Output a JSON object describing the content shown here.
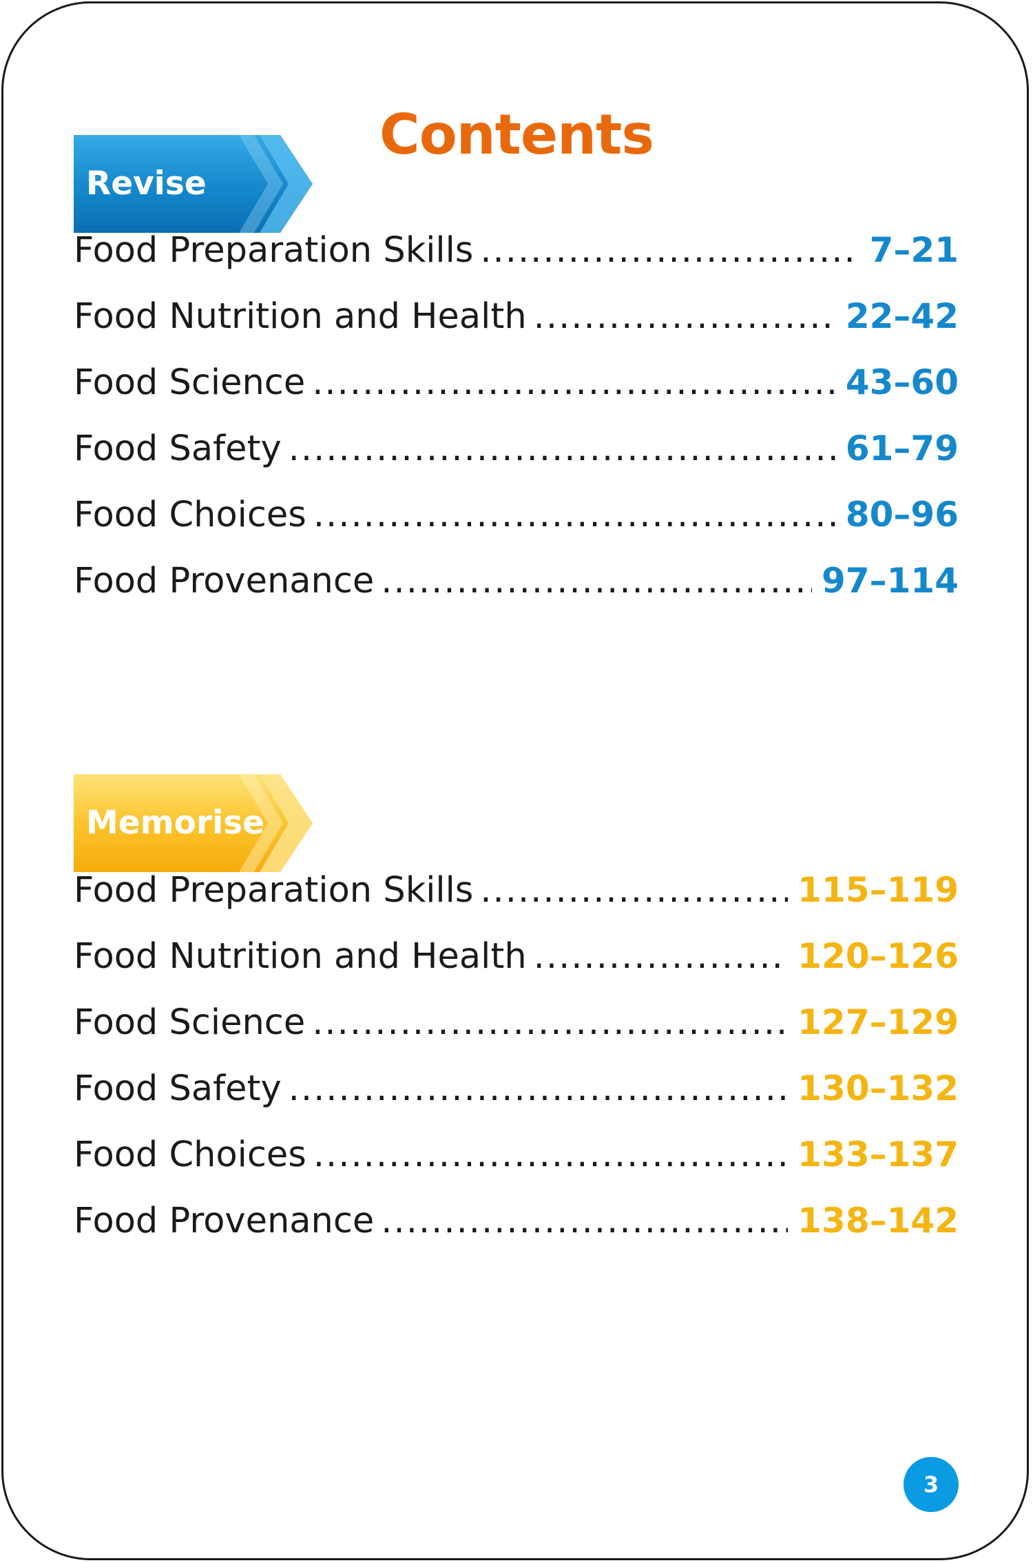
{
  "page": {
    "title": "Contents",
    "page_number": "3"
  },
  "colors": {
    "title": "#e8690c",
    "revise_accent": "#1588cc",
    "memorise_accent": "#f4b512",
    "badge": "#0a9be3"
  },
  "sections": [
    {
      "label": "Revise",
      "items": [
        {
          "topic": "Food Preparation Skills",
          "pages": "7–21"
        },
        {
          "topic": "Food Nutrition and Health",
          "pages": "22–42"
        },
        {
          "topic": "Food Science",
          "pages": "43–60"
        },
        {
          "topic": "Food Safety",
          "pages": "61–79"
        },
        {
          "topic": "Food Choices",
          "pages": "80–96"
        },
        {
          "topic": "Food Provenance",
          "pages": "97–114"
        }
      ]
    },
    {
      "label": "Memorise",
      "items": [
        {
          "topic": "Food Preparation Skills",
          "pages": "115–119"
        },
        {
          "topic": "Food Nutrition and Health",
          "pages": "120–126"
        },
        {
          "topic": "Food Science",
          "pages": "127–129"
        },
        {
          "topic": "Food Safety",
          "pages": "130–132"
        },
        {
          "topic": "Food Choices",
          "pages": "133–137"
        },
        {
          "topic": "Food Provenance",
          "pages": "138–142"
        }
      ]
    }
  ]
}
